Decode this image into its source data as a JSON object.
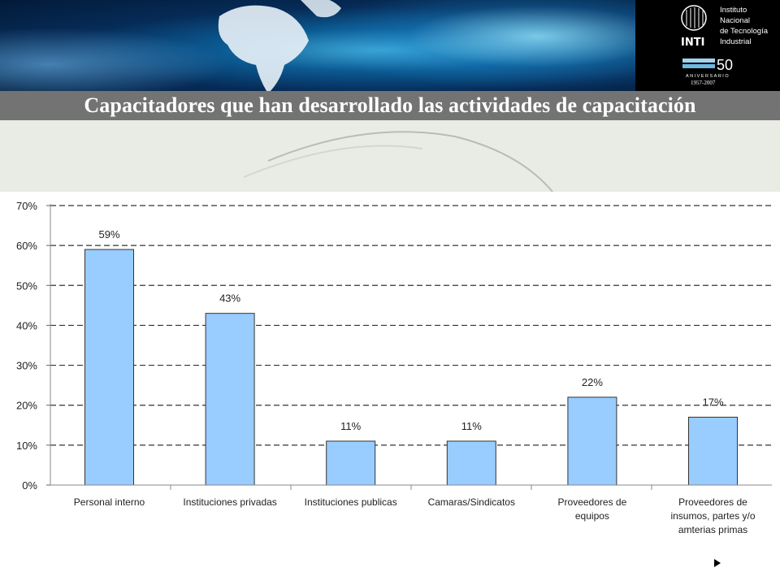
{
  "slide": {
    "title": "Capacitadores que han desarrollado las actividades de capacitación"
  },
  "logo": {
    "acronym": "INTI",
    "lines": [
      "Instituto",
      "Nacional",
      "de Tecnología",
      "Industrial"
    ],
    "anniversary_number": "50",
    "anniversary_word": "ANIVERSARIO",
    "anniversary_years": "1957-2007"
  },
  "colors": {
    "bar_fill": "#99ccff",
    "bar_stroke": "#333333",
    "title_bar": "#737373",
    "grid": "#333333"
  },
  "chart_data": {
    "type": "bar",
    "title": "",
    "xlabel": "",
    "ylabel": "",
    "ylim": [
      0,
      70
    ],
    "y_ticks": [
      0,
      10,
      20,
      30,
      40,
      50,
      60,
      70
    ],
    "y_tick_labels": [
      "0%",
      "10%",
      "20%",
      "30%",
      "40%",
      "50%",
      "60%",
      "70%"
    ],
    "grid": "horizontal dashed",
    "legend": "none",
    "categories": [
      [
        "Personal interno"
      ],
      [
        "Instituciones privadas"
      ],
      [
        "Instituciones publicas"
      ],
      [
        "Camaras/Sindicatos"
      ],
      [
        "Proveedores de",
        "equipos"
      ],
      [
        "Proveedores de",
        "insumos, partes y/o",
        "amterias primas"
      ]
    ],
    "values": [
      59,
      43,
      11,
      11,
      22,
      17
    ],
    "data_labels": [
      "59%",
      "43%",
      "11%",
      "11%",
      "22%",
      "17%"
    ]
  }
}
